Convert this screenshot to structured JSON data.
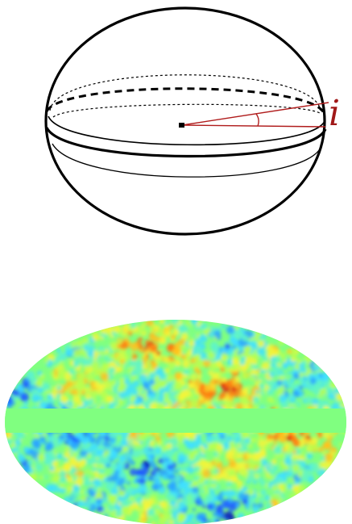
{
  "top_diagram": {
    "angle_label": "i",
    "colors": {
      "outline": "#000000",
      "angle": "#b01c1c"
    }
  },
  "sky_map": {
    "projection": "mollweide",
    "colormap": "jet",
    "masked_band": "galactic plane",
    "band_color": "#80ff80",
    "colors": {
      "mean": "#80ff80",
      "cold": "#0033cc",
      "warm": "#e02010"
    }
  }
}
